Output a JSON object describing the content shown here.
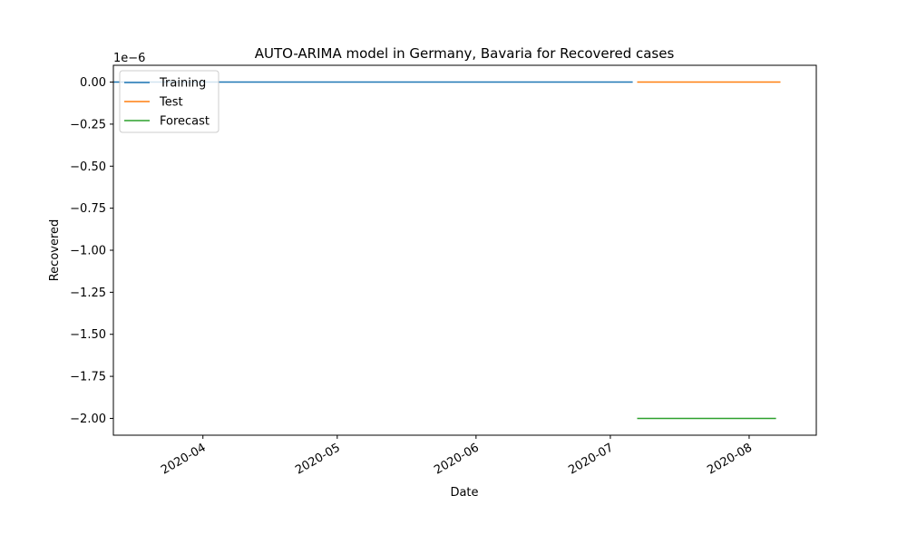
{
  "chart_data": {
    "type": "line",
    "title": "AUTO-ARIMA model in Germany, Bavaria for Recovered cases",
    "xlabel": "Date",
    "ylabel": "Recovered",
    "y_offset_label": "1e−6",
    "y_scale": 1e-06,
    "xlim": [
      "2020-03-12",
      "2020-08-16"
    ],
    "ylim": [
      -2.1,
      0.1
    ],
    "x_ticks": [
      {
        "date": "2020-04-01",
        "label": "2020-04"
      },
      {
        "date": "2020-05-01",
        "label": "2020-05"
      },
      {
        "date": "2020-06-01",
        "label": "2020-06"
      },
      {
        "date": "2020-07-01",
        "label": "2020-07"
      },
      {
        "date": "2020-08-01",
        "label": "2020-08"
      }
    ],
    "y_ticks": [
      {
        "value": 0.0,
        "label": "0.00"
      },
      {
        "value": -0.25,
        "label": "−0.25"
      },
      {
        "value": -0.5,
        "label": "−0.50"
      },
      {
        "value": -0.75,
        "label": "−0.75"
      },
      {
        "value": -1.0,
        "label": "−1.00"
      },
      {
        "value": -1.25,
        "label": "−1.25"
      },
      {
        "value": -1.5,
        "label": "−1.50"
      },
      {
        "value": -1.75,
        "label": "−1.75"
      },
      {
        "value": -2.0,
        "label": "−2.00"
      }
    ],
    "grid": false,
    "legend_position": "upper-left",
    "series": [
      {
        "name": "Training",
        "color": "#1f77b4",
        "x": [
          "2020-03-12",
          "2020-07-06"
        ],
        "y": [
          0.0,
          0.0
        ]
      },
      {
        "name": "Test",
        "color": "#ff7f0e",
        "x": [
          "2020-07-07",
          "2020-08-08"
        ],
        "y": [
          0.0,
          0.0
        ]
      },
      {
        "name": "Forecast",
        "color": "#2ca02c",
        "x": [
          "2020-07-07",
          "2020-08-07"
        ],
        "y": [
          -2.0,
          -2.0
        ]
      }
    ]
  }
}
